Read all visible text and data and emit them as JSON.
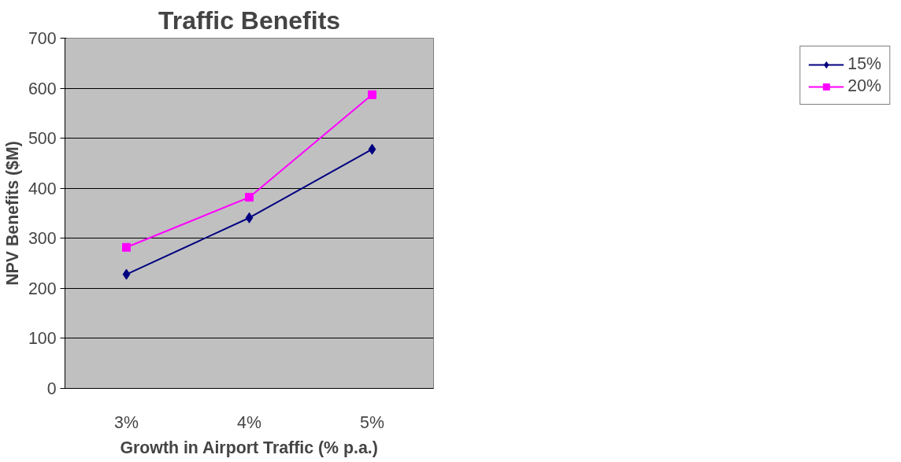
{
  "chart_data": {
    "type": "line",
    "title": "Traffic Benefits",
    "xlabel": "Growth in Airport Traffic (% p.a.)",
    "ylabel": "NPV Benefits ($M)",
    "categories": [
      "3%",
      "4%",
      "5%"
    ],
    "series": [
      {
        "name": "15%",
        "color": "#000080",
        "values": [
          228,
          341,
          478
        ],
        "marker": "diamond"
      },
      {
        "name": "20%",
        "color": "#ff00ff",
        "values": [
          282,
          382,
          587
        ],
        "marker": "square"
      }
    ],
    "ylim": [
      0,
      700
    ],
    "yticks": [
      0,
      100,
      200,
      300,
      400,
      500,
      600,
      700
    ],
    "grid": "y",
    "legend": "right"
  }
}
